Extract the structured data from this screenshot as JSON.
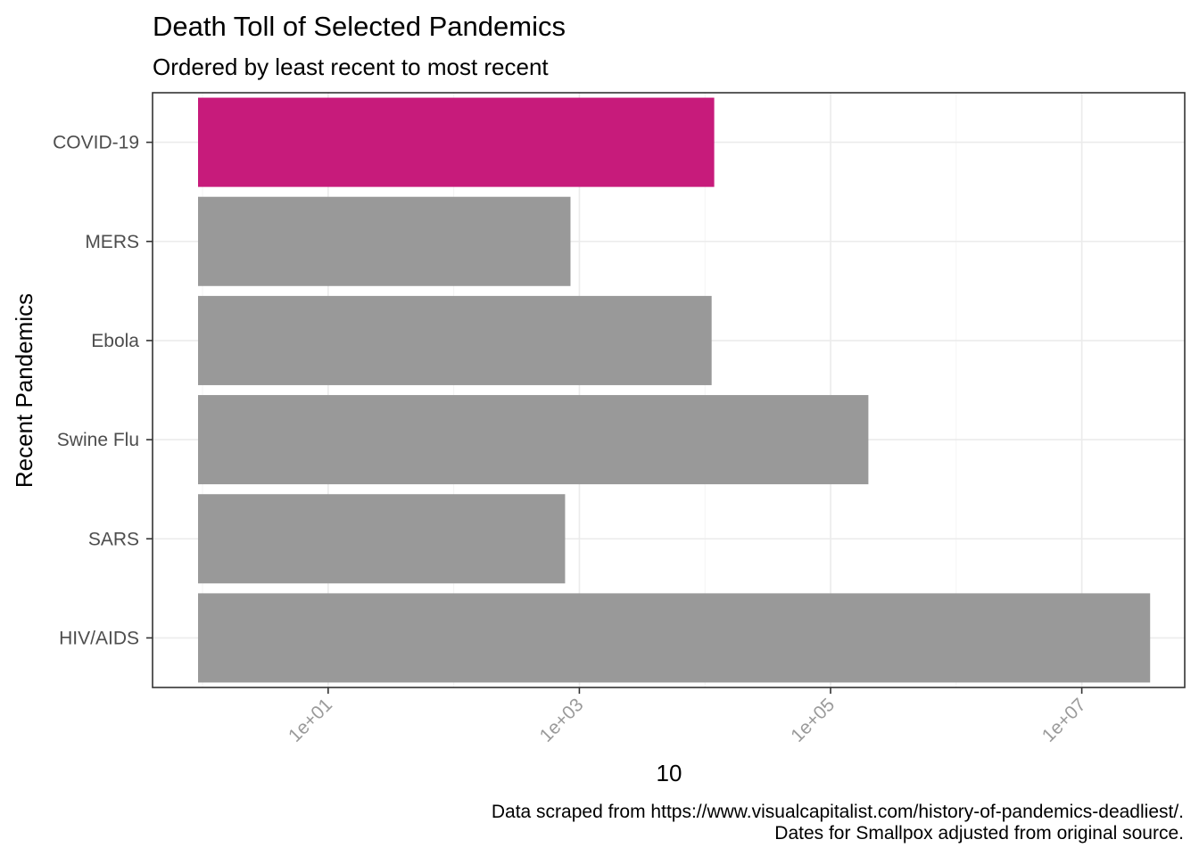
{
  "chart_data": {
    "type": "bar",
    "orientation": "horizontal",
    "title": "Death Toll of Selected Pandemics",
    "subtitle": "Ordered by least recent to most recent",
    "xlabel": "10",
    "ylabel": "Recent Pandemics",
    "x_scale": "log10",
    "xlim": [
      0.4,
      66000000
    ],
    "x_ticks": [
      10,
      1000,
      100000,
      10000000
    ],
    "x_tick_labels": [
      "1e+01",
      "1e+03",
      "1e+05",
      "1e+07"
    ],
    "categories": [
      "HIV/AIDS",
      "SARS",
      "Swine Flu",
      "Ebola",
      "MERS",
      "COVID-19"
    ],
    "values": [
      35000000,
      770,
      200000,
      11300,
      850,
      11850
    ],
    "colors": [
      "#999999",
      "#999999",
      "#999999",
      "#999999",
      "#999999",
      "#C71B7B"
    ],
    "highlight": "COVID-19",
    "grid": true,
    "legend": "none",
    "caption": [
      "Data scraped from https://www.visualcapitalist.com/history-of-pandemics-deadliest/.",
      "Dates for Smallpox adjusted from original source."
    ]
  }
}
